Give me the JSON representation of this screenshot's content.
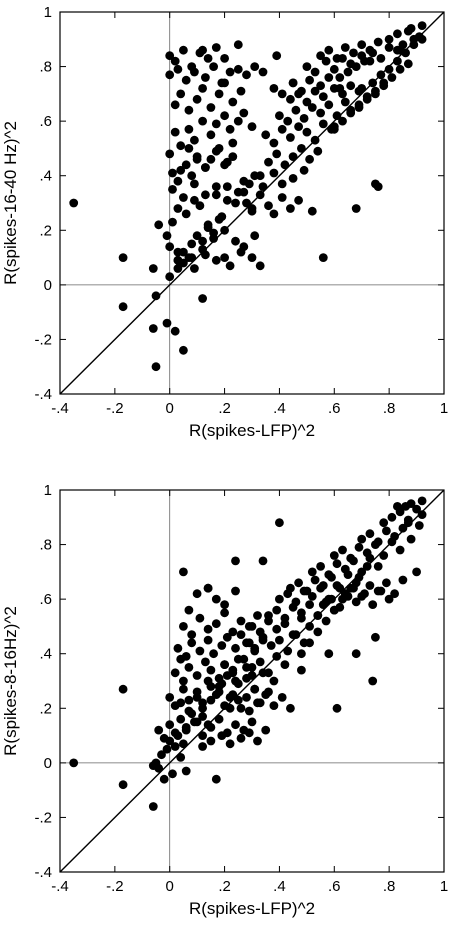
{
  "chart_data": [
    {
      "type": "scatter",
      "xlabel": "R(spikes-LFP)^2",
      "ylabel": "R(spikes-16-40 Hz)^2",
      "xlim": [
        -0.4,
        1
      ],
      "ylim": [
        -0.4,
        1
      ],
      "x_ticks": [
        -0.4,
        -0.2,
        0,
        0.2,
        0.4,
        0.6,
        0.8,
        1
      ],
      "x_tick_labels": [
        "-.4",
        "-.2",
        "0",
        ".2",
        ".4",
        ".6",
        ".8",
        "1"
      ],
      "y_ticks": [
        -0.4,
        -0.2,
        0,
        0.2,
        0.4,
        0.6,
        0.8,
        1
      ],
      "y_tick_labels": [
        "-.4",
        "-.2",
        "0",
        ".2",
        ".4",
        ".6",
        ".8",
        "1"
      ],
      "reference_lines": [
        "x=0",
        "y=0",
        "y=x"
      ],
      "grid": false,
      "x": [
        -0.35,
        -0.17,
        -0.17,
        -0.06,
        -0.06,
        -0.05,
        -0.05,
        -0.01,
        0.0,
        0.02,
        0.03,
        0.05,
        0.08,
        0.12,
        -0.04,
        -0.01,
        0.01,
        0.03,
        0.0,
        0.03,
        0.05,
        0.07,
        0.1,
        0.12,
        0.14,
        0.16,
        0.18,
        0.2,
        0.03,
        0.06,
        0.09,
        0.11,
        0.14,
        0.17,
        0.19,
        0.21,
        0.24,
        0.27,
        0.3,
        0.33,
        0.01,
        0.03,
        0.06,
        0.08,
        0.1,
        0.13,
        0.15,
        0.18,
        0.21,
        0.23,
        0.02,
        0.04,
        0.07,
        0.09,
        0.12,
        0.15,
        0.17,
        0.2,
        0.22,
        0.25,
        0.27,
        0.3,
        0.02,
        0.04,
        0.07,
        0.1,
        0.12,
        0.15,
        0.18,
        0.2,
        0.23,
        0.26,
        0.0,
        0.02,
        0.05,
        0.08,
        0.11,
        0.14,
        0.17,
        0.0,
        0.03,
        0.06,
        0.09,
        0.13,
        0.16,
        0.19,
        0.22,
        0.25,
        0.28,
        0.31,
        0.34,
        0.0,
        0.04,
        0.07,
        0.1,
        0.13,
        0.17,
        0.2,
        0.23,
        0.01,
        0.05,
        0.09,
        0.13,
        0.17,
        0.21,
        0.25,
        0.29,
        0.03,
        0.08,
        0.12,
        0.16,
        0.2,
        0.24,
        0.27,
        0.31,
        0.05,
        0.09,
        0.13,
        0.17,
        0.22,
        0.26,
        0.3,
        0.28,
        0.3,
        0.33,
        0.36,
        0.38,
        0.41,
        0.44,
        0.47,
        0.27,
        0.31,
        0.34,
        0.38,
        0.41,
        0.45,
        0.49,
        0.36,
        0.39,
        0.42,
        0.45,
        0.48,
        0.51,
        0.54,
        0.35,
        0.38,
        0.41,
        0.44,
        0.47,
        0.5,
        0.53,
        0.56,
        0.59,
        0.4,
        0.43,
        0.46,
        0.49,
        0.52,
        0.55,
        0.58,
        0.61,
        0.64,
        0.38,
        0.41,
        0.45,
        0.48,
        0.51,
        0.55,
        0.58,
        0.62,
        0.44,
        0.47,
        0.5,
        0.53,
        0.56,
        0.6,
        0.63,
        0.66,
        0.69,
        0.5,
        0.53,
        0.57,
        0.6,
        0.63,
        0.66,
        0.7,
        0.73,
        0.55,
        0.58,
        0.61,
        0.64,
        0.67,
        0.7,
        0.73,
        0.76,
        0.6,
        0.63,
        0.66,
        0.69,
        0.72,
        0.75,
        0.78,
        0.62,
        0.65,
        0.68,
        0.71,
        0.74,
        0.77,
        0.8,
        0.83,
        0.66,
        0.69,
        0.72,
        0.75,
        0.78,
        0.81,
        0.84,
        0.87,
        0.7,
        0.74,
        0.77,
        0.8,
        0.83,
        0.86,
        0.89,
        0.92,
        0.8,
        0.83,
        0.85,
        0.87,
        0.89,
        0.91,
        0.92,
        0.84,
        0.88,
        0.12,
        0.2,
        0.25,
        0.33,
        0.39,
        0.45,
        0.52,
        0.56,
        0.6,
        0.68,
        0.75,
        0.76
      ],
      "y": [
        0.3,
        0.1,
        -0.08,
        -0.16,
        0.06,
        -0.3,
        -0.04,
        -0.14,
        0.03,
        -0.17,
        0.09,
        -0.24,
        0.1,
        -0.05,
        0.22,
        0.18,
        0.23,
        0.06,
        0.14,
        0.09,
        0.12,
        0.1,
        0.18,
        0.16,
        0.21,
        0.19,
        0.24,
        0.2,
        0.28,
        0.26,
        0.31,
        0.29,
        0.22,
        0.33,
        0.25,
        0.36,
        0.3,
        0.34,
        0.28,
        0.4,
        0.41,
        0.38,
        0.44,
        0.4,
        0.47,
        0.43,
        0.46,
        0.5,
        0.45,
        0.52,
        0.56,
        0.51,
        0.57,
        0.53,
        0.6,
        0.55,
        0.59,
        0.62,
        0.57,
        0.6,
        0.63,
        0.58,
        0.66,
        0.7,
        0.64,
        0.68,
        0.72,
        0.65,
        0.7,
        0.74,
        0.67,
        0.71,
        0.84,
        0.82,
        0.86,
        0.8,
        0.85,
        0.83,
        0.87,
        0.77,
        0.79,
        0.75,
        0.78,
        0.76,
        0.8,
        0.74,
        0.78,
        0.79,
        0.77,
        0.8,
        0.78,
        0.48,
        0.42,
        0.5,
        0.46,
        0.43,
        0.49,
        0.44,
        0.47,
        0.35,
        0.32,
        0.37,
        0.33,
        0.36,
        0.31,
        0.34,
        0.37,
        0.12,
        0.15,
        0.13,
        0.17,
        0.1,
        0.16,
        0.14,
        0.18,
        0.08,
        0.06,
        0.11,
        0.09,
        0.07,
        0.12,
        0.1,
        0.3,
        0.27,
        0.33,
        0.29,
        0.26,
        0.32,
        0.28,
        0.31,
        0.38,
        0.4,
        0.36,
        0.41,
        0.37,
        0.39,
        0.42,
        0.45,
        0.48,
        0.44,
        0.47,
        0.5,
        0.46,
        0.49,
        0.55,
        0.52,
        0.57,
        0.54,
        0.58,
        0.56,
        0.53,
        0.59,
        0.57,
        0.62,
        0.6,
        0.64,
        0.61,
        0.65,
        0.63,
        0.66,
        0.62,
        0.67,
        0.72,
        0.7,
        0.74,
        0.71,
        0.75,
        0.73,
        0.76,
        0.72,
        0.68,
        0.7,
        0.67,
        0.71,
        0.69,
        0.72,
        0.7,
        0.73,
        0.71,
        0.8,
        0.78,
        0.82,
        0.79,
        0.83,
        0.81,
        0.84,
        0.82,
        0.84,
        0.86,
        0.83,
        0.87,
        0.85,
        0.88,
        0.86,
        0.89,
        0.58,
        0.6,
        0.63,
        0.65,
        0.68,
        0.7,
        0.73,
        0.76,
        0.78,
        0.8,
        0.82,
        0.85,
        0.83,
        0.87,
        0.86,
        0.64,
        0.66,
        0.69,
        0.71,
        0.74,
        0.76,
        0.79,
        0.81,
        0.72,
        0.74,
        0.77,
        0.79,
        0.82,
        0.85,
        0.88,
        0.9,
        0.9,
        0.92,
        0.88,
        0.93,
        0.9,
        0.91,
        0.95,
        0.86,
        0.94,
        0.86,
        0.83,
        0.88,
        0.07,
        0.84,
        0.74,
        0.27,
        0.1,
        0.57,
        0.28,
        0.37,
        0.36
      ]
    },
    {
      "type": "scatter",
      "xlabel": "R(spikes-LFP)^2",
      "ylabel": "R(spikes-8-16Hz)^2",
      "xlim": [
        -0.4,
        1
      ],
      "ylim": [
        -0.4,
        1
      ],
      "x_ticks": [
        -0.4,
        -0.2,
        0,
        0.2,
        0.4,
        0.6,
        0.8,
        1
      ],
      "x_tick_labels": [
        "-.4",
        "-.2",
        "0",
        ".2",
        ".4",
        ".6",
        ".8",
        "1"
      ],
      "y_ticks": [
        -0.4,
        -0.2,
        0,
        0.2,
        0.4,
        0.6,
        0.8,
        1
      ],
      "y_tick_labels": [
        "-.4",
        "-.2",
        "0",
        ".2",
        ".4",
        ".6",
        ".8",
        "1"
      ],
      "reference_lines": [
        "x=0",
        "y=0",
        "y=x"
      ],
      "grid": false,
      "x": [
        -0.35,
        -0.17,
        -0.17,
        -0.06,
        -0.06,
        -0.05,
        -0.04,
        -0.03,
        -0.02,
        -0.01,
        0.0,
        0.01,
        0.02,
        0.03,
        0.04,
        0.05,
        0.06,
        -0.04,
        -0.02,
        0.0,
        0.02,
        0.04,
        0.06,
        0.08,
        0.1,
        0.12,
        0.14,
        0.0,
        0.02,
        0.05,
        0.07,
        0.1,
        0.12,
        0.15,
        0.17,
        0.19,
        0.22,
        0.24,
        0.02,
        0.05,
        0.07,
        0.1,
        0.13,
        0.15,
        0.18,
        0.2,
        0.23,
        0.25,
        0.28,
        0.3,
        0.03,
        0.06,
        0.08,
        0.11,
        0.14,
        0.16,
        0.19,
        0.21,
        0.24,
        0.26,
        0.29,
        0.31,
        0.34,
        0.04,
        0.07,
        0.1,
        0.12,
        0.15,
        0.18,
        0.2,
        0.23,
        0.26,
        0.28,
        0.31,
        0.33,
        0.36,
        0.05,
        0.08,
        0.11,
        0.14,
        0.17,
        0.2,
        0.23,
        0.26,
        0.29,
        0.32,
        0.06,
        0.09,
        0.12,
        0.15,
        0.18,
        0.21,
        0.24,
        0.27,
        0.3,
        0.04,
        0.07,
        0.1,
        0.14,
        0.17,
        0.2,
        0.24,
        0.12,
        0.15,
        0.19,
        0.22,
        0.26,
        0.29,
        0.32,
        0.35,
        0.14,
        0.18,
        0.21,
        0.25,
        0.28,
        0.31,
        0.34,
        0.38,
        0.2,
        0.23,
        0.27,
        0.3,
        0.33,
        0.36,
        0.39,
        0.42,
        0.22,
        0.25,
        0.29,
        0.32,
        0.35,
        0.38,
        0.41,
        0.44,
        0.28,
        0.31,
        0.34,
        0.37,
        0.4,
        0.43,
        0.46,
        0.49,
        0.3,
        0.33,
        0.36,
        0.39,
        0.42,
        0.45,
        0.48,
        0.51,
        0.54,
        0.36,
        0.39,
        0.42,
        0.45,
        0.48,
        0.51,
        0.54,
        0.57,
        0.6,
        0.4,
        0.43,
        0.46,
        0.49,
        0.52,
        0.55,
        0.58,
        0.61,
        0.64,
        0.44,
        0.47,
        0.5,
        0.53,
        0.56,
        0.59,
        0.62,
        0.65,
        0.68,
        0.48,
        0.51,
        0.54,
        0.57,
        0.6,
        0.63,
        0.66,
        0.69,
        0.72,
        0.52,
        0.55,
        0.58,
        0.61,
        0.64,
        0.67,
        0.7,
        0.73,
        0.76,
        0.56,
        0.59,
        0.62,
        0.65,
        0.68,
        0.71,
        0.74,
        0.77,
        0.8,
        0.6,
        0.63,
        0.66,
        0.69,
        0.72,
        0.75,
        0.78,
        0.81,
        0.84,
        0.64,
        0.67,
        0.7,
        0.73,
        0.76,
        0.79,
        0.82,
        0.85,
        0.7,
        0.73,
        0.76,
        0.79,
        0.82,
        0.85,
        0.88,
        0.91,
        0.92,
        0.78,
        0.81,
        0.84,
        0.86,
        0.88,
        0.9,
        0.92,
        0.87,
        0.83,
        0.05,
        0.14,
        0.24,
        0.34,
        0.4,
        0.48,
        0.58,
        0.61,
        0.68,
        0.74,
        0.75,
        0.9,
        0.87,
        0.17
      ],
      "y": [
        0.0,
        0.27,
        -0.08,
        -0.16,
        -0.01,
        0.0,
        -0.02,
        0.03,
        -0.06,
        0.05,
        0.08,
        -0.04,
        0.06,
        0.1,
        0.02,
        0.07,
        -0.03,
        0.12,
        0.09,
        0.14,
        0.11,
        0.16,
        0.13,
        0.18,
        0.15,
        0.17,
        0.14,
        0.24,
        0.21,
        0.27,
        0.23,
        0.26,
        0.22,
        0.28,
        0.25,
        0.29,
        0.24,
        0.3,
        0.33,
        0.3,
        0.35,
        0.32,
        0.37,
        0.34,
        0.31,
        0.36,
        0.33,
        0.38,
        0.35,
        0.32,
        0.42,
        0.39,
        0.44,
        0.41,
        0.45,
        0.4,
        0.43,
        0.46,
        0.42,
        0.47,
        0.44,
        0.41,
        0.45,
        0.22,
        0.19,
        0.24,
        0.2,
        0.23,
        0.26,
        0.21,
        0.25,
        0.2,
        0.24,
        0.27,
        0.22,
        0.26,
        0.5,
        0.47,
        0.53,
        0.49,
        0.51,
        0.55,
        0.48,
        0.52,
        0.5,
        0.54,
        0.12,
        0.15,
        0.1,
        0.13,
        0.16,
        0.11,
        0.14,
        0.12,
        0.15,
        0.38,
        0.56,
        0.62,
        0.64,
        0.6,
        0.58,
        0.63,
        0.06,
        0.08,
        0.1,
        0.07,
        0.09,
        0.11,
        0.08,
        0.12,
        0.3,
        0.28,
        0.32,
        0.29,
        0.31,
        0.27,
        0.33,
        0.3,
        0.36,
        0.34,
        0.38,
        0.35,
        0.37,
        0.33,
        0.39,
        0.36,
        0.2,
        0.23,
        0.19,
        0.22,
        0.25,
        0.21,
        0.24,
        0.2,
        0.44,
        0.42,
        0.46,
        0.43,
        0.45,
        0.41,
        0.47,
        0.44,
        0.5,
        0.48,
        0.52,
        0.49,
        0.51,
        0.47,
        0.53,
        0.5,
        0.54,
        0.54,
        0.56,
        0.53,
        0.57,
        0.55,
        0.58,
        0.54,
        0.59,
        0.56,
        0.6,
        0.62,
        0.59,
        0.63,
        0.61,
        0.64,
        0.6,
        0.65,
        0.62,
        0.64,
        0.66,
        0.63,
        0.67,
        0.65,
        0.68,
        0.64,
        0.69,
        0.66,
        0.4,
        0.44,
        0.48,
        0.52,
        0.56,
        0.6,
        0.64,
        0.68,
        0.72,
        0.7,
        0.72,
        0.69,
        0.73,
        0.71,
        0.74,
        0.7,
        0.75,
        0.72,
        0.58,
        0.6,
        0.57,
        0.61,
        0.59,
        0.62,
        0.58,
        0.63,
        0.6,
        0.76,
        0.78,
        0.75,
        0.79,
        0.77,
        0.8,
        0.76,
        0.81,
        0.78,
        0.62,
        0.64,
        0.61,
        0.65,
        0.63,
        0.66,
        0.62,
        0.67,
        0.82,
        0.84,
        0.81,
        0.85,
        0.83,
        0.86,
        0.82,
        0.87,
        0.96,
        0.88,
        0.9,
        0.92,
        0.94,
        0.95,
        0.93,
        0.91,
        0.89,
        0.94,
        0.7,
        0.64,
        0.74,
        0.74,
        0.88,
        0.34,
        0.4,
        0.2,
        0.4,
        0.3,
        0.46,
        0.7,
        0.88,
        -0.06
      ]
    }
  ]
}
